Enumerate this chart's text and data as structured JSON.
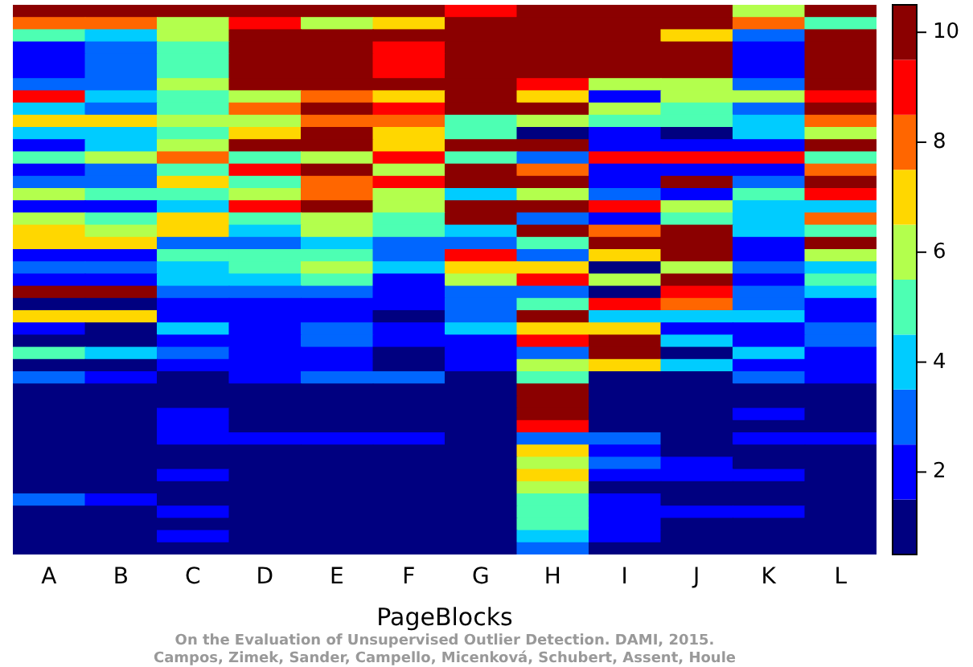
{
  "chart_data": {
    "type": "heatmap",
    "xlabel": "PageBlocks",
    "categories": [
      "A",
      "B",
      "C",
      "D",
      "E",
      "F",
      "G",
      "H",
      "I",
      "J",
      "K",
      "L"
    ],
    "y_categories": [
      null,
      null,
      null,
      null,
      null,
      null,
      null,
      null,
      null,
      null,
      null,
      null,
      null,
      null,
      null,
      null,
      null,
      null,
      null,
      null,
      null,
      null,
      null,
      null,
      null,
      null,
      null,
      null,
      null,
      null,
      null,
      null,
      null,
      null,
      null,
      null,
      null,
      null,
      null,
      null,
      null,
      null,
      null,
      null,
      null
    ],
    "cells": [
      [
        10,
        10,
        10,
        10,
        10,
        10,
        9,
        10,
        10,
        10,
        6,
        10
      ],
      [
        8,
        8,
        6,
        9,
        6,
        7,
        10,
        10,
        10,
        10,
        8,
        5
      ],
      [
        5,
        4,
        6,
        10,
        10,
        10,
        10,
        10,
        10,
        7,
        3,
        10
      ],
      [
        2,
        3,
        5,
        10,
        10,
        9,
        10,
        10,
        10,
        10,
        2,
        10
      ],
      [
        2,
        3,
        5,
        10,
        10,
        9,
        10,
        10,
        10,
        10,
        2,
        10
      ],
      [
        2,
        3,
        5,
        10,
        10,
        9,
        10,
        10,
        10,
        10,
        2,
        10
      ],
      [
        3,
        3,
        6,
        10,
        10,
        10,
        10,
        9,
        6,
        6,
        3,
        10
      ],
      [
        9,
        4,
        5,
        6,
        8,
        7,
        10,
        7,
        2,
        6,
        6,
        9
      ],
      [
        4,
        3,
        5,
        8,
        10,
        9,
        10,
        10,
        6,
        5,
        3,
        10
      ],
      [
        7,
        7,
        6,
        6,
        8,
        8,
        5,
        6,
        5,
        5,
        4,
        8
      ],
      [
        4,
        4,
        5,
        7,
        10,
        7,
        5,
        1,
        2,
        1,
        4,
        6
      ],
      [
        2,
        4,
        6,
        10,
        10,
        7,
        10,
        10,
        2,
        2,
        2,
        10
      ],
      [
        5,
        6,
        8,
        5,
        6,
        9,
        5,
        3,
        9,
        9,
        9,
        5
      ],
      [
        2,
        3,
        5,
        9,
        10,
        6,
        10,
        8,
        2,
        2,
        2,
        8
      ],
      [
        3,
        3,
        7,
        5,
        8,
        9,
        10,
        10,
        2,
        10,
        3,
        10
      ],
      [
        6,
        5,
        5,
        6,
        8,
        6,
        4,
        6,
        3,
        2,
        5,
        9
      ],
      [
        2,
        2,
        4,
        9,
        10,
        6,
        10,
        10,
        9,
        6,
        4,
        4
      ],
      [
        6,
        5,
        7,
        5,
        6,
        5,
        10,
        3,
        2,
        5,
        4,
        8
      ],
      [
        7,
        6,
        7,
        4,
        6,
        5,
        4,
        10,
        8,
        10,
        4,
        5
      ],
      [
        7,
        7,
        3,
        3,
        4,
        3,
        3,
        5,
        10,
        10,
        2,
        10
      ],
      [
        2,
        2,
        5,
        5,
        5,
        3,
        9,
        3,
        7,
        10,
        2,
        6
      ],
      [
        3,
        3,
        4,
        5,
        6,
        4,
        7,
        7,
        1,
        6,
        3,
        4
      ],
      [
        2,
        2,
        4,
        4,
        5,
        2,
        6,
        9,
        6,
        10,
        2,
        5
      ],
      [
        10,
        10,
        3,
        3,
        3,
        2,
        3,
        3,
        1,
        9,
        3,
        4
      ],
      [
        1,
        1,
        2,
        2,
        2,
        2,
        3,
        5,
        9,
        8,
        3,
        2
      ],
      [
        7,
        7,
        2,
        2,
        2,
        1,
        3,
        10,
        4,
        4,
        4,
        2
      ],
      [
        2,
        1,
        4,
        2,
        3,
        2,
        4,
        7,
        7,
        2,
        2,
        3
      ],
      [
        1,
        1,
        2,
        2,
        3,
        2,
        2,
        9,
        10,
        4,
        2,
        3
      ],
      [
        5,
        4,
        3,
        2,
        2,
        1,
        2,
        3,
        10,
        1,
        4,
        2
      ],
      [
        1,
        1,
        2,
        2,
        2,
        1,
        2,
        6,
        7,
        4,
        2,
        2
      ],
      [
        3,
        2,
        1,
        2,
        3,
        3,
        1,
        5,
        1,
        1,
        3,
        2
      ],
      [
        1,
        1,
        1,
        1,
        1,
        1,
        1,
        10,
        1,
        1,
        1,
        1
      ],
      [
        1,
        1,
        1,
        1,
        1,
        1,
        1,
        10,
        1,
        1,
        1,
        1
      ],
      [
        1,
        1,
        2,
        1,
        1,
        1,
        1,
        10,
        1,
        1,
        2,
        1
      ],
      [
        1,
        1,
        2,
        1,
        1,
        1,
        1,
        9,
        1,
        1,
        1,
        1
      ],
      [
        1,
        1,
        2,
        2,
        2,
        2,
        1,
        3,
        3,
        1,
        2,
        2
      ],
      [
        1,
        1,
        1,
        1,
        1,
        1,
        1,
        7,
        2,
        1,
        1,
        1
      ],
      [
        1,
        1,
        1,
        1,
        1,
        1,
        1,
        6,
        3,
        2,
        1,
        1
      ],
      [
        1,
        1,
        2,
        1,
        1,
        1,
        1,
        7,
        2,
        2,
        2,
        1
      ],
      [
        1,
        1,
        1,
        1,
        1,
        1,
        1,
        6,
        1,
        1,
        1,
        1
      ],
      [
        3,
        2,
        1,
        1,
        1,
        1,
        1,
        5,
        2,
        1,
        1,
        1
      ],
      [
        1,
        1,
        2,
        1,
        1,
        1,
        1,
        5,
        2,
        2,
        2,
        1
      ],
      [
        1,
        1,
        1,
        1,
        1,
        1,
        1,
        5,
        2,
        1,
        1,
        1
      ],
      [
        1,
        1,
        2,
        1,
        1,
        1,
        1,
        4,
        2,
        1,
        1,
        1
      ],
      [
        1,
        1,
        1,
        1,
        1,
        1,
        1,
        3,
        1,
        1,
        1,
        1
      ]
    ],
    "clim": [
      0.5,
      10.5
    ],
    "cticks": [
      2,
      4,
      6,
      8,
      10
    ],
    "annotations": [
      "On the Evaluation of Unsupervised Outlier Detection. DAMI, 2015.",
      "Campos, Zimek, Sander, Campello, Micenková, Schubert, Assent, Houle"
    ]
  }
}
